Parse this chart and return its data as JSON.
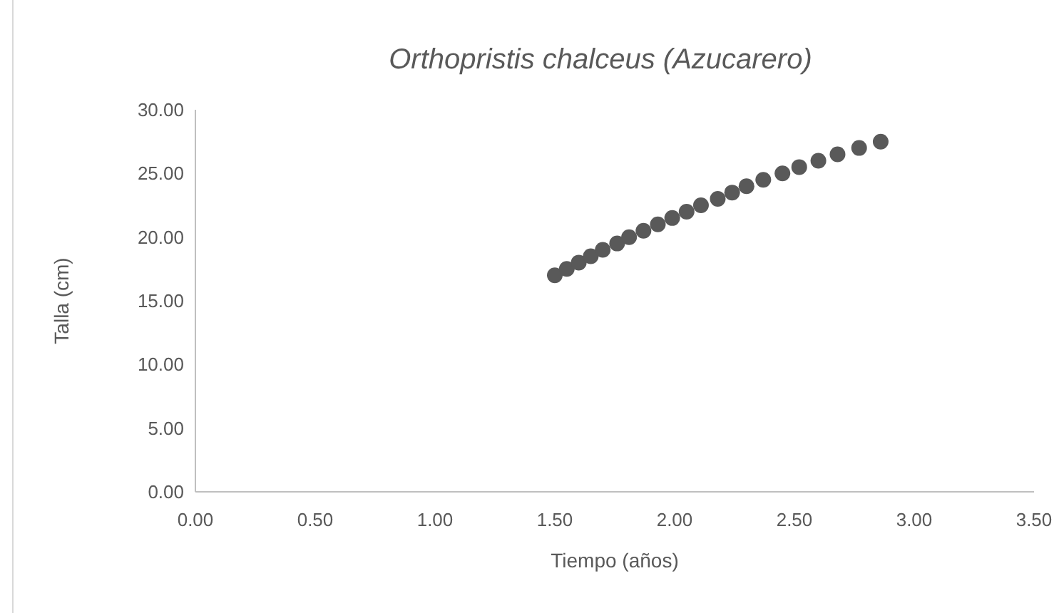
{
  "chart_data": {
    "type": "scatter",
    "title": "Orthopristis chalceus (Azucarero)",
    "xlabel": "Tiempo (años)",
    "ylabel": "Talla (cm)",
    "x": [
      1.5,
      1.55,
      1.6,
      1.65,
      1.7,
      1.76,
      1.81,
      1.87,
      1.93,
      1.99,
      2.05,
      2.11,
      2.18,
      2.24,
      2.3,
      2.37,
      2.45,
      2.52,
      2.6,
      2.68,
      2.77,
      2.86
    ],
    "series": [
      {
        "color": "#595959",
        "values": [
          17.0,
          17.5,
          18.0,
          18.5,
          19.0,
          19.5,
          20.0,
          20.5,
          21.0,
          21.5,
          22.0,
          22.5,
          23.0,
          23.5,
          24.0,
          24.5,
          25.0,
          25.5,
          26.0,
          26.5,
          27.0,
          27.5
        ]
      }
    ],
    "xlim": [
      0,
      3.5
    ],
    "xticks": [
      {
        "value": 0,
        "label": "0.00"
      },
      {
        "value": 0.5,
        "label": "0.50"
      },
      {
        "value": 1,
        "label": "1.00"
      },
      {
        "value": 1.5,
        "label": "1.50"
      },
      {
        "value": 2,
        "label": "2.00"
      },
      {
        "value": 2.5,
        "label": "2.50"
      },
      {
        "value": 3,
        "label": "3.00"
      },
      {
        "value": 3.5,
        "label": "3.50"
      }
    ],
    "ylim": [
      0,
      30
    ],
    "yticks": [
      {
        "value": 0,
        "label": "0.00"
      },
      {
        "value": 5,
        "label": "5.00"
      },
      {
        "value": 10,
        "label": "10.00"
      },
      {
        "value": 15,
        "label": "15.00"
      },
      {
        "value": 20,
        "label": "20.00"
      },
      {
        "value": 25,
        "label": "25.00"
      },
      {
        "value": 30,
        "label": "30.00"
      }
    ],
    "marker": "circle"
  }
}
